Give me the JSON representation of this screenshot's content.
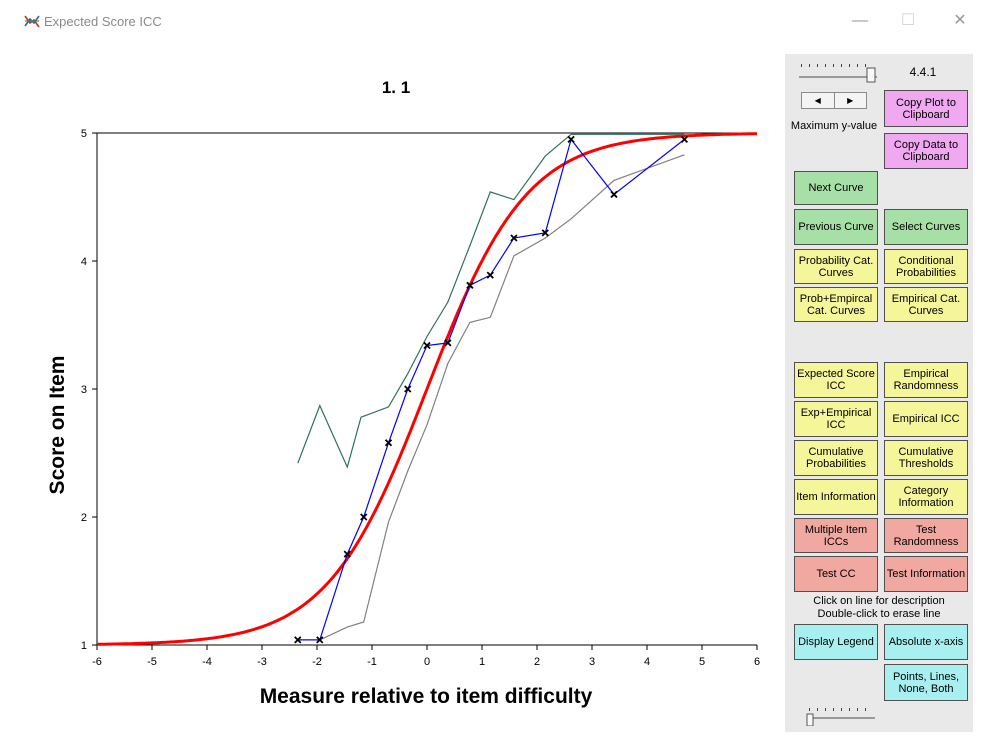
{
  "window": {
    "title": "Expected Score ICC",
    "minimize": "—",
    "maximize": "☐",
    "close": "✕"
  },
  "plot": {
    "title": "1. 1",
    "xlabel": "Measure relative to item difficulty",
    "ylabel": "Score on Item"
  },
  "side": {
    "version": "4.4.1",
    "max_y_label": "Maximum y-value",
    "note_line1": "Click on line for description",
    "note_line2": "Double-click to erase line",
    "buttons": {
      "copy_plot": "Copy Plot to Clipboard",
      "copy_data": "Copy Data to Clipboard",
      "next_curve": "Next Curve",
      "previous_curve": "Previous Curve",
      "select_curves": "Select Curves",
      "probability_cat": "Probability Cat. Curves",
      "conditional_prob": "Conditional Probabilities",
      "prob_empirical": "Prob+Empircal Cat. Curves",
      "empirical_cat": "Empirical Cat. Curves",
      "expected_icc": "Expected Score ICC",
      "empirical_randomness": "Empirical Randomness",
      "exp_empirical_icc": "Exp+Empirical ICC",
      "empirical_icc": "Empirical ICC",
      "cumulative_prob": "Cumulative Probabilities",
      "cumulative_thresh": "Cumulative Thresholds",
      "item_info": "Item Information",
      "category_info": "Category Information",
      "multiple_item_iccs": "Multiple Item ICCs",
      "test_randomness": "Test Randomness",
      "test_cc": "Test CC",
      "test_info": "Test Information",
      "display_legend": "Display Legend",
      "absolute_xaxis": "Absolute x-axis",
      "points_lines": "Points, Lines, None, Both"
    }
  },
  "chart_data": {
    "type": "line",
    "title": "1. 1",
    "xlabel": "Measure relative to item difficulty",
    "ylabel": "Score on Item",
    "xlim": [
      -6,
      6
    ],
    "ylim": [
      1,
      5
    ],
    "xticks": [
      -6,
      -5,
      -4,
      -3,
      -2,
      -1,
      0,
      1,
      2,
      3,
      4,
      5,
      6
    ],
    "yticks": [
      1,
      2,
      3,
      4,
      5
    ],
    "grid": false,
    "series": [
      {
        "role": "expected-score",
        "color": "#ff0000",
        "function": "logistic",
        "x": [
          -6,
          -5,
          -4,
          -3,
          -2,
          -1.5,
          -1,
          -0.5,
          0,
          0.5,
          1,
          1.5,
          2,
          3,
          4,
          5,
          6
        ],
        "values": [
          1.01,
          1.03,
          1.08,
          1.2,
          1.53,
          1.78,
          2.12,
          2.56,
          3.0,
          3.42,
          3.86,
          4.22,
          4.47,
          4.8,
          4.93,
          4.98,
          5.0
        ]
      },
      {
        "role": "empirical",
        "color": "#0000ff",
        "marker": "x",
        "x": [
          -2.35,
          -1.95,
          -1.45,
          -1.15,
          -0.7,
          -0.35,
          0.0,
          0.38,
          0.78,
          1.15,
          1.58,
          2.15,
          2.62,
          3.4,
          4.68
        ],
        "values": [
          1.04,
          1.04,
          1.71,
          2.0,
          2.58,
          3.0,
          3.34,
          3.36,
          3.81,
          3.89,
          4.18,
          4.22,
          4.95,
          4.52,
          4.95
        ]
      },
      {
        "role": "upper-confidence",
        "color": "#2f6f5f",
        "x": [
          -2.35,
          -1.95,
          -1.45,
          -1.2,
          -0.7,
          -0.35,
          0.0,
          0.38,
          0.78,
          1.15,
          1.58,
          2.15,
          2.62,
          3.4,
          4.68
        ],
        "values": [
          2.42,
          2.87,
          2.39,
          2.78,
          2.86,
          3.12,
          3.41,
          3.68,
          4.12,
          4.54,
          4.48,
          4.82,
          4.99,
          4.99,
          4.99
        ]
      },
      {
        "role": "lower-confidence",
        "color": "#808080",
        "x": [
          -1.95,
          -1.45,
          -1.15,
          -0.7,
          -0.35,
          0.0,
          0.38,
          0.78,
          1.15,
          1.58,
          2.15,
          2.62,
          3.4,
          4.68
        ],
        "values": [
          1.04,
          1.14,
          1.18,
          1.96,
          2.36,
          2.72,
          3.2,
          3.52,
          3.56,
          4.04,
          4.18,
          4.33,
          4.63,
          4.83
        ]
      }
    ]
  }
}
